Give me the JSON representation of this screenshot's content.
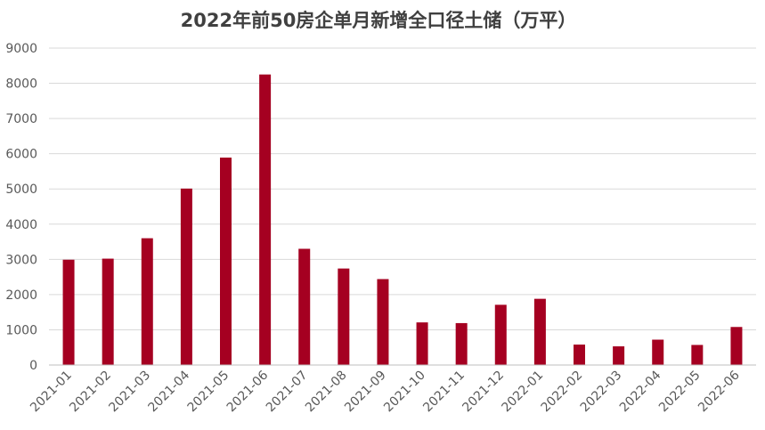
{
  "chart_data": {
    "type": "bar",
    "title": "2022年前50房企单月新增全口径土储（万平）",
    "xlabel": "",
    "ylabel": "",
    "categories": [
      "2021-01",
      "2021-02",
      "2021-03",
      "2021-04",
      "2021-05",
      "2021-06",
      "2021-07",
      "2021-08",
      "2021-09",
      "2021-10",
      "2021-11",
      "2021-12",
      "2022-01",
      "2022-02",
      "2022-03",
      "2022-04",
      "2022-05",
      "2022-06"
    ],
    "values": [
      2990,
      3020,
      3600,
      5010,
      5890,
      8250,
      3300,
      2740,
      2440,
      1210,
      1190,
      1710,
      1880,
      580,
      530,
      720,
      570,
      1080
    ],
    "ylim": [
      0,
      9000
    ],
    "yticks": [
      0,
      1000,
      2000,
      3000,
      4000,
      5000,
      6000,
      7000,
      8000,
      9000
    ],
    "grid": true,
    "legend": "none",
    "colors": {
      "bar": "#a50021",
      "grid": "#d9d9d9",
      "axis_text": "#595959",
      "title": "#404040"
    }
  }
}
